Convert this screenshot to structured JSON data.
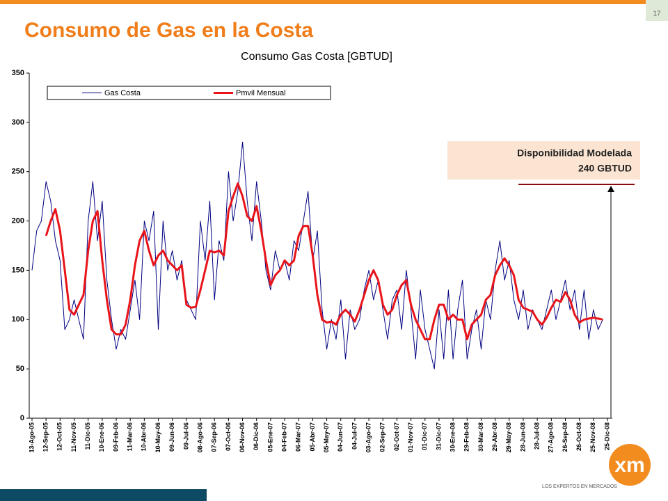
{
  "slide": {
    "page_number": "17",
    "title": "Consumo de Gas en la Costa",
    "logo_text": "xm",
    "logo_tagline": "LOS EXPERTOS EN MERCADOS"
  },
  "chart_data": {
    "type": "line",
    "title": "Consumo Gas Costa [GBTUD]",
    "annotation": [
      "Disponibilidad Modelada",
      "240 GBTUD"
    ],
    "legend": "top-left",
    "ylim": [
      0,
      350
    ],
    "yticks": [
      0,
      50,
      100,
      150,
      200,
      250,
      300,
      350
    ],
    "xlim": [
      "2005-08-13",
      "2008-12-25"
    ],
    "xticks": [
      {
        "value": "2005-08-13",
        "label": "13-Ago-05"
      },
      {
        "value": "2005-09-12",
        "label": "12-Sep-05"
      },
      {
        "value": "2005-10-12",
        "label": "12-Oct-05"
      },
      {
        "value": "2005-11-11",
        "label": "11-Nov-05"
      },
      {
        "value": "2005-12-11",
        "label": "11-Dic-05"
      },
      {
        "value": "2006-01-10",
        "label": "10-Ene-06"
      },
      {
        "value": "2006-02-09",
        "label": "09-Feb-06"
      },
      {
        "value": "2006-03-11",
        "label": "11-Mar-06"
      },
      {
        "value": "2006-04-10",
        "label": "10-Abr-06"
      },
      {
        "value": "2006-05-10",
        "label": "10-May-06"
      },
      {
        "value": "2006-06-09",
        "label": "09-Jun-06"
      },
      {
        "value": "2006-07-09",
        "label": "09-Jul-06"
      },
      {
        "value": "2006-08-08",
        "label": "08-Ago-06"
      },
      {
        "value": "2006-09-07",
        "label": "07-Sep-06"
      },
      {
        "value": "2006-10-07",
        "label": "07-Oct-06"
      },
      {
        "value": "2006-11-06",
        "label": "06-Nov-06"
      },
      {
        "value": "2006-12-06",
        "label": "06-Dic-06"
      },
      {
        "value": "2007-01-05",
        "label": "05-Ene-07"
      },
      {
        "value": "2007-02-04",
        "label": "04-Feb-07"
      },
      {
        "value": "2007-03-06",
        "label": "06-Mar-07"
      },
      {
        "value": "2007-04-05",
        "label": "05-Abr-07"
      },
      {
        "value": "2007-05-05",
        "label": "05-May-07"
      },
      {
        "value": "2007-06-04",
        "label": "04-Jun-07"
      },
      {
        "value": "2007-07-04",
        "label": "04-Jul-07"
      },
      {
        "value": "2007-08-03",
        "label": "03-Ago-07"
      },
      {
        "value": "2007-09-02",
        "label": "02-Sep-07"
      },
      {
        "value": "2007-10-02",
        "label": "02-Oct-07"
      },
      {
        "value": "2007-11-01",
        "label": "01-Nov-07"
      },
      {
        "value": "2007-12-01",
        "label": "01-Dic-07"
      },
      {
        "value": "2007-12-31",
        "label": "31-Dic-07"
      },
      {
        "value": "2008-01-30",
        "label": "30-Ene-08"
      },
      {
        "value": "2008-02-29",
        "label": "29-Feb-08"
      },
      {
        "value": "2008-03-30",
        "label": "30-Mar-08"
      },
      {
        "value": "2008-04-29",
        "label": "29-Abr-08"
      },
      {
        "value": "2008-05-29",
        "label": "29-May-08"
      },
      {
        "value": "2008-06-28",
        "label": "28-Jun-08"
      },
      {
        "value": "2008-07-28",
        "label": "28-Jul-08"
      },
      {
        "value": "2008-08-27",
        "label": "27-Ago-08"
      },
      {
        "value": "2008-09-26",
        "label": "26-Sep-08"
      },
      {
        "value": "2008-10-26",
        "label": "26-Oct-08"
      },
      {
        "value": "2008-11-25",
        "label": "25-Nov-08"
      },
      {
        "value": "2008-12-25",
        "label": "25-Dic-08"
      }
    ],
    "x": [
      "2005-08-13",
      "2005-08-23",
      "2005-09-02",
      "2005-09-12",
      "2005-09-22",
      "2005-10-02",
      "2005-10-12",
      "2005-10-22",
      "2005-11-01",
      "2005-11-11",
      "2005-11-21",
      "2005-12-01",
      "2005-12-11",
      "2005-12-21",
      "2005-12-31",
      "2006-01-10",
      "2006-01-20",
      "2006-01-30",
      "2006-02-09",
      "2006-02-19",
      "2006-03-01",
      "2006-03-11",
      "2006-03-21",
      "2006-03-31",
      "2006-04-10",
      "2006-04-20",
      "2006-04-30",
      "2006-05-10",
      "2006-05-20",
      "2006-05-30",
      "2006-06-09",
      "2006-06-19",
      "2006-06-29",
      "2006-07-09",
      "2006-07-19",
      "2006-07-29",
      "2006-08-08",
      "2006-08-18",
      "2006-08-28",
      "2006-09-07",
      "2006-09-17",
      "2006-09-27",
      "2006-10-07",
      "2006-10-17",
      "2006-10-27",
      "2006-11-06",
      "2006-11-16",
      "2006-11-26",
      "2006-12-06",
      "2006-12-16",
      "2006-12-26",
      "2007-01-05",
      "2007-01-15",
      "2007-01-25",
      "2007-02-04",
      "2007-02-14",
      "2007-02-24",
      "2007-03-06",
      "2007-03-16",
      "2007-03-26",
      "2007-04-05",
      "2007-04-15",
      "2007-04-25",
      "2007-05-05",
      "2007-05-15",
      "2007-05-25",
      "2007-06-04",
      "2007-06-14",
      "2007-06-24",
      "2007-07-04",
      "2007-07-14",
      "2007-07-24",
      "2007-08-03",
      "2007-08-13",
      "2007-08-23",
      "2007-09-02",
      "2007-09-12",
      "2007-09-22",
      "2007-10-02",
      "2007-10-12",
      "2007-10-22",
      "2007-11-01",
      "2007-11-11",
      "2007-11-21",
      "2007-12-01",
      "2007-12-11",
      "2007-12-21",
      "2007-12-31",
      "2008-01-10",
      "2008-01-20",
      "2008-01-30",
      "2008-02-09",
      "2008-02-19",
      "2008-02-29",
      "2008-03-10",
      "2008-03-20",
      "2008-03-30",
      "2008-04-09",
      "2008-04-19",
      "2008-04-29",
      "2008-05-09",
      "2008-05-19",
      "2008-05-29",
      "2008-06-08",
      "2008-06-18",
      "2008-06-28",
      "2008-07-08",
      "2008-07-18",
      "2008-07-28",
      "2008-08-07",
      "2008-08-17",
      "2008-08-27",
      "2008-09-06",
      "2008-09-16",
      "2008-09-26",
      "2008-10-06",
      "2008-10-16",
      "2008-10-26",
      "2008-11-05",
      "2008-11-15",
      "2008-11-25",
      "2008-12-05",
      "2008-12-15"
    ],
    "series": [
      {
        "name": "Gas Costa",
        "color": "#000080",
        "width": 1,
        "values": [
          150,
          190,
          200,
          240,
          220,
          180,
          160,
          90,
          100,
          120,
          100,
          80,
          200,
          240,
          180,
          220,
          140,
          100,
          70,
          90,
          80,
          110,
          140,
          100,
          200,
          180,
          210,
          90,
          200,
          150,
          170,
          140,
          160,
          120,
          110,
          100,
          200,
          160,
          220,
          120,
          180,
          160,
          250,
          200,
          230,
          280,
          220,
          180,
          240,
          200,
          150,
          130,
          170,
          150,
          160,
          140,
          180,
          170,
          200,
          230,
          160,
          190,
          110,
          70,
          100,
          80,
          120,
          60,
          110,
          90,
          100,
          130,
          150,
          120,
          140,
          110,
          80,
          120,
          130,
          90,
          150,
          110,
          60,
          130,
          90,
          70,
          50,
          110,
          60,
          130,
          60,
          110,
          140,
          60,
          90,
          110,
          70,
          120,
          100,
          150,
          180,
          140,
          160,
          120,
          100,
          130,
          90,
          110,
          100,
          90,
          110,
          130,
          100,
          120,
          140,
          110,
          130,
          90,
          130,
          80,
          110,
          90,
          100
        ]
      },
      {
        "name": "Pmvil Mensual",
        "color": "#e8141a",
        "width": 3,
        "values": [
          null,
          null,
          null,
          185,
          200,
          212,
          190,
          150,
          110,
          105,
          115,
          125,
          170,
          200,
          210,
          160,
          120,
          90,
          85,
          85,
          95,
          120,
          155,
          180,
          190,
          170,
          155,
          165,
          170,
          160,
          155,
          150,
          155,
          115,
          112,
          113,
          130,
          150,
          170,
          168,
          170,
          165,
          210,
          225,
          238,
          225,
          205,
          200,
          215,
          190,
          160,
          135,
          145,
          150,
          160,
          155,
          160,
          185,
          195,
          195,
          165,
          125,
          100,
          97,
          98,
          95,
          105,
          110,
          105,
          98,
          110,
          125,
          140,
          150,
          140,
          115,
          105,
          110,
          125,
          135,
          140,
          115,
          100,
          90,
          80,
          80,
          100,
          115,
          115,
          100,
          105,
          100,
          100,
          80,
          95,
          100,
          105,
          120,
          125,
          145,
          155,
          162,
          155,
          145,
          120,
          112,
          110,
          108,
          100,
          95,
          102,
          112,
          120,
          118,
          128,
          120,
          105,
          97,
          100,
          101,
          102,
          101,
          100
        ]
      }
    ]
  }
}
